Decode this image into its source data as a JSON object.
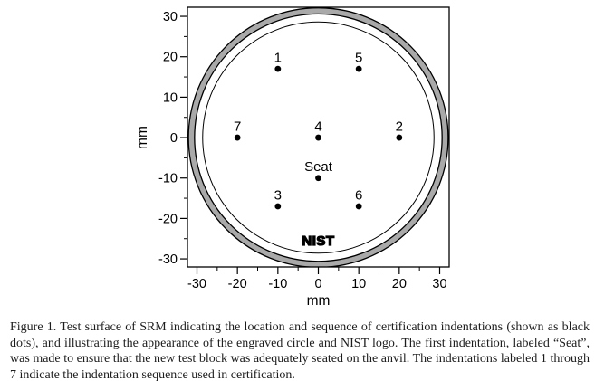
{
  "figure": {
    "caption_lines": [
      "Figure 1.  Test surface of SRM indicating the location and sequence of certification indentations (shown as black",
      "dots), and illustrating the appearance of the engraved circle and NIST logo.  The first indentation, labeled “Seat”,",
      "was made to ensure that the new test block was adequately seated on the anvil.  The indentations labeled 1 through",
      "7 indicate the indentation sequence used in certification."
    ]
  },
  "chart_data": {
    "type": "scatter",
    "title": "",
    "xlabel": "mm",
    "ylabel": "mm",
    "xlim": [
      -32.35,
      32.35
    ],
    "ylim": [
      -32.0,
      32.25
    ],
    "x_major_ticks": [
      -30,
      -20,
      -10,
      0,
      10,
      20,
      30
    ],
    "y_major_ticks": [
      -30,
      -20,
      -10,
      0,
      10,
      20,
      30
    ],
    "minor_tick_positions": [
      -25,
      -15,
      -5,
      5,
      15,
      25
    ],
    "grid": false,
    "legend": "none",
    "points": [
      {
        "label": "1",
        "x": -10,
        "y": 17
      },
      {
        "label": "5",
        "x": 10,
        "y": 17
      },
      {
        "label": "7",
        "x": -20,
        "y": 0
      },
      {
        "label": "4",
        "x": 0,
        "y": 0
      },
      {
        "label": "2",
        "x": 20,
        "y": 0
      },
      {
        "label": "Seat",
        "x": 0,
        "y": -10
      },
      {
        "label": "3",
        "x": -10,
        "y": -17
      },
      {
        "label": "6",
        "x": 10,
        "y": -17
      }
    ],
    "marker": {
      "shape": "dot",
      "radius_px": 3.4,
      "color": "#000000"
    },
    "circles": {
      "block_outer_radius_mm": 32.1,
      "rim_inner_radius_mm": 30.6,
      "engraved_circle_radius_mm": 28.6,
      "rim_fill_color": "#a9a9a9",
      "line_color": "#000000"
    },
    "logo": {
      "text": "NIST",
      "x": 0,
      "y": -26.6
    }
  },
  "colors": {
    "background": "#ffffff",
    "ink": "#000000",
    "rim_gray": "#a9a9a9"
  }
}
